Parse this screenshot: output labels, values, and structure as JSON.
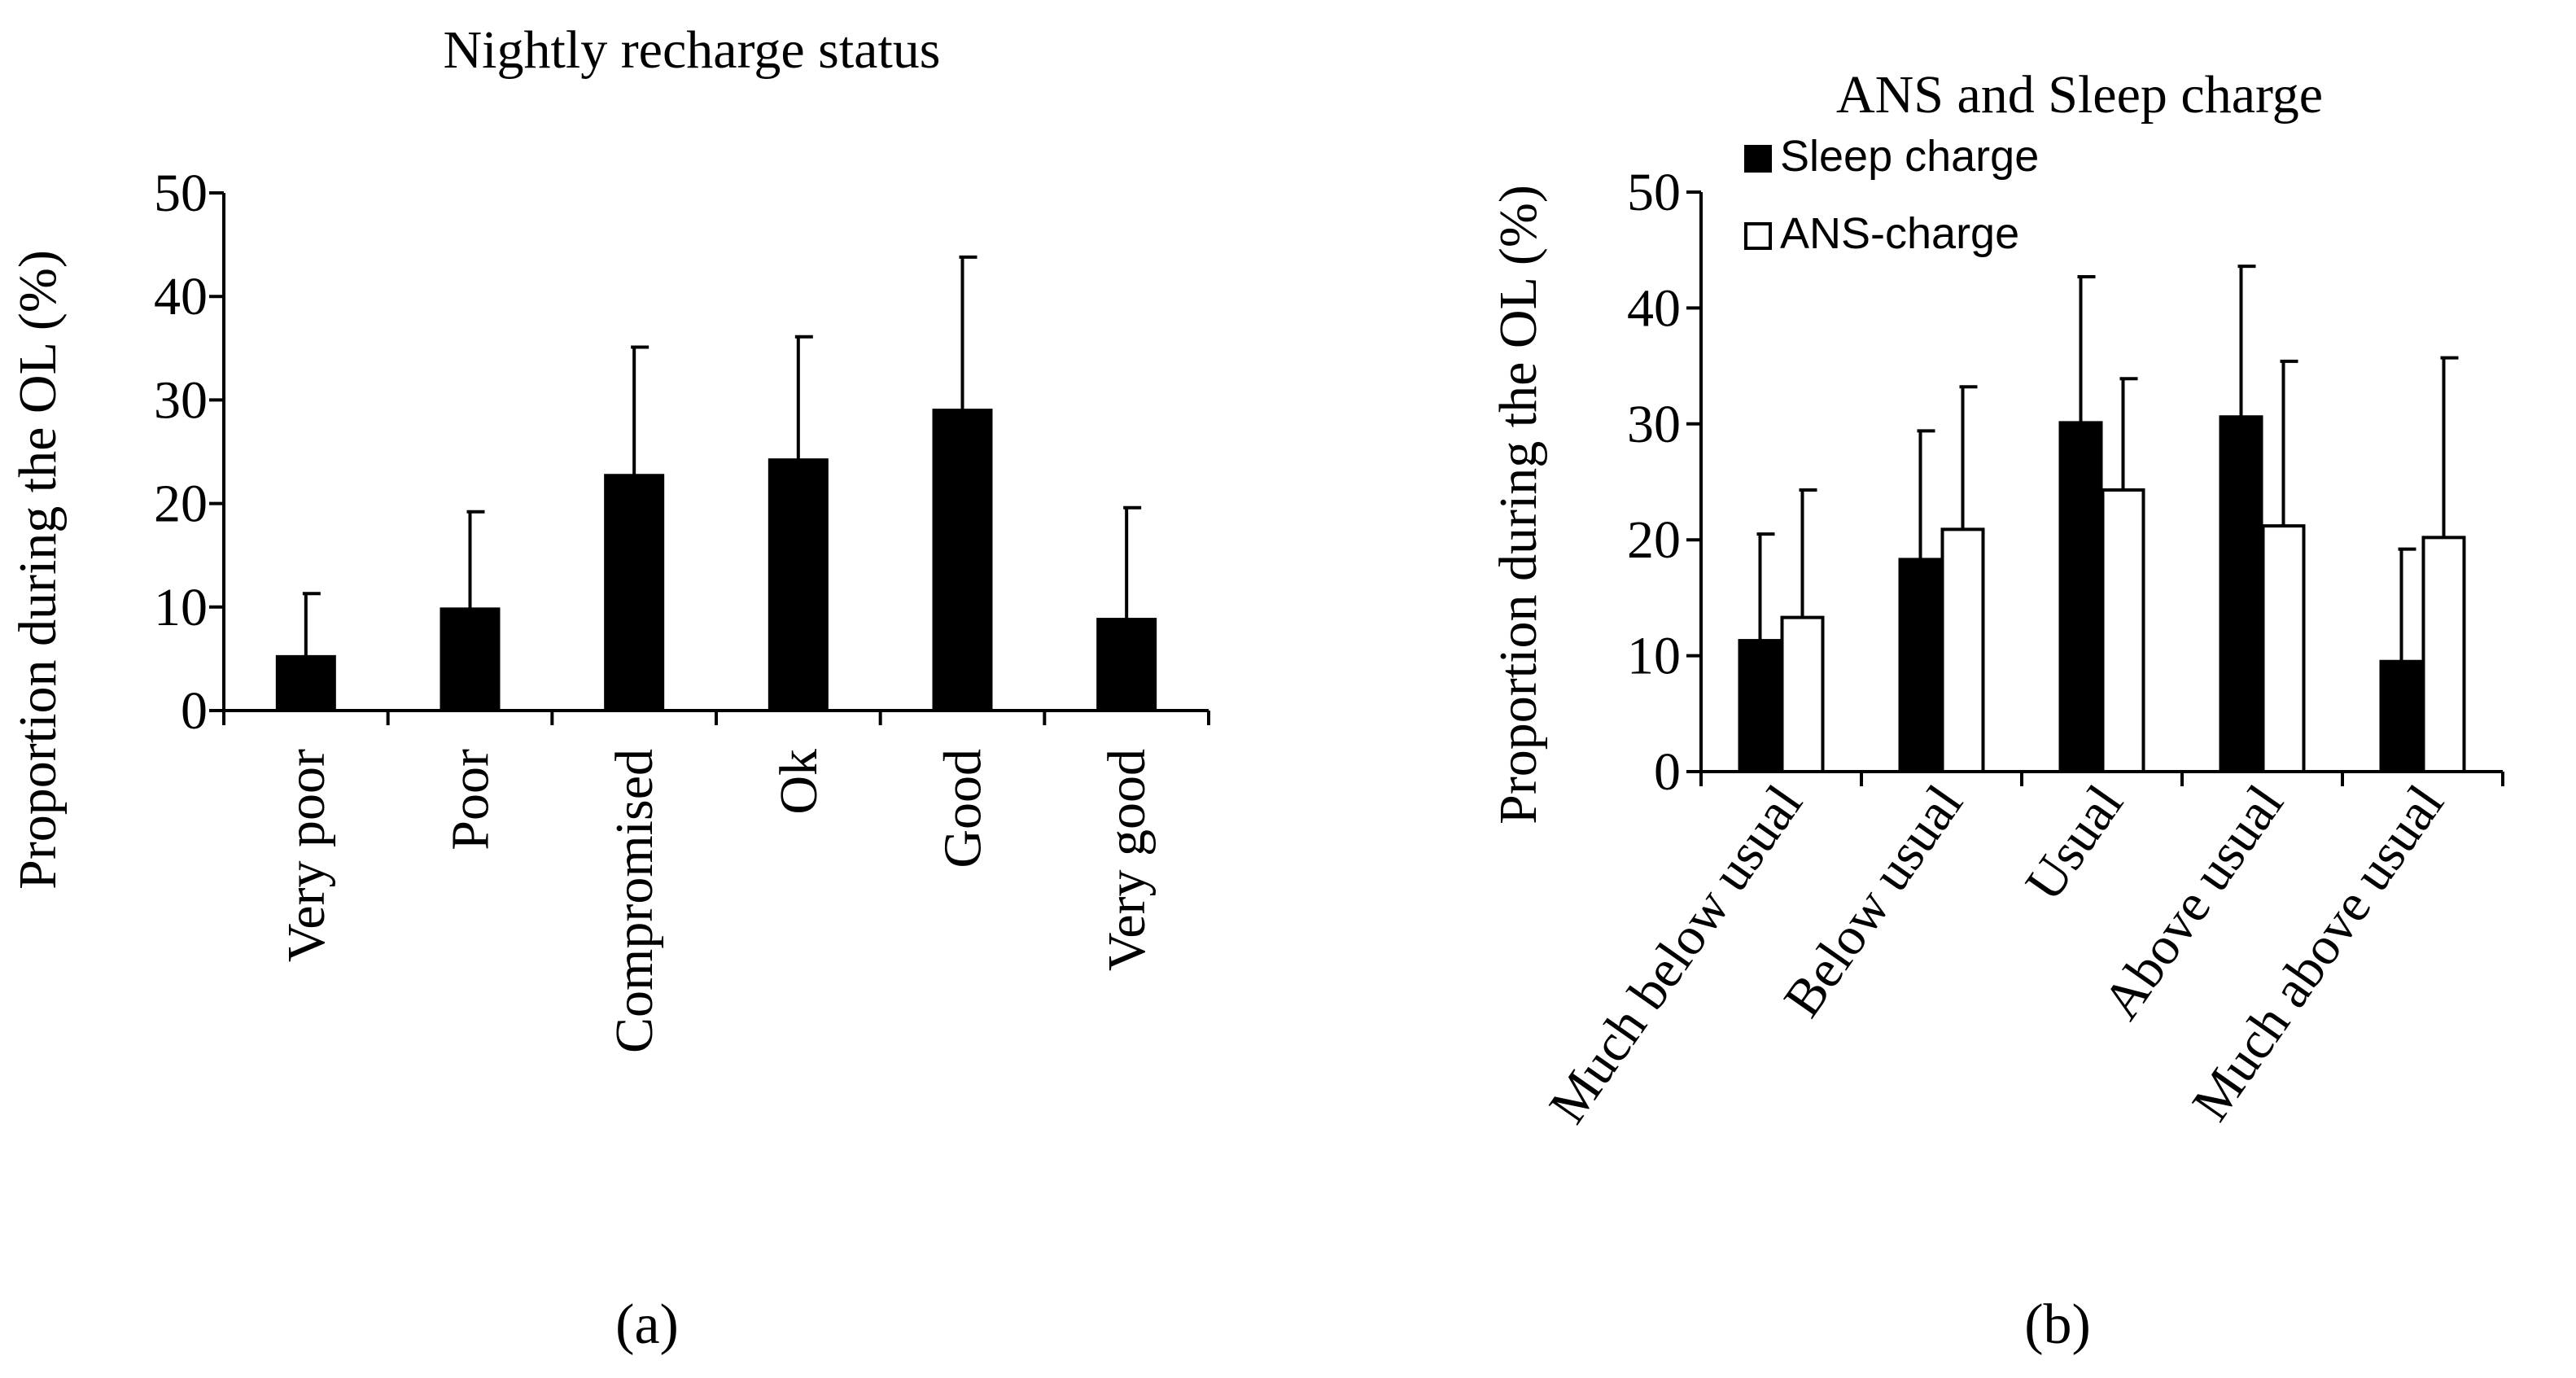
{
  "chart_data": [
    {
      "type": "bar",
      "title": "Nightly recharge status",
      "xlabel": "",
      "ylabel": "Proportion during the OL (%)",
      "ylim": [
        0,
        50
      ],
      "yticks": [
        0,
        10,
        20,
        30,
        40,
        50
      ],
      "grid": false,
      "error_bars": true,
      "categories": [
        "Very poor",
        "Poor",
        "Compromised",
        "Ok",
        "Good",
        "Very good"
      ],
      "series": [
        {
          "name": "Nightly recharge",
          "color": "#000000",
          "values": [
            5.2,
            9.8,
            22.7,
            24.2,
            29.0,
            8.8
          ],
          "errors": [
            6.1,
            9.4,
            12.4,
            11.9,
            14.8,
            10.8
          ]
        }
      ],
      "panel_label": "a"
    },
    {
      "type": "bar",
      "title": "ANS and Sleep charge",
      "xlabel": "",
      "ylabel": "Proportion during the OL (%)",
      "ylim": [
        0,
        50
      ],
      "yticks": [
        0,
        10,
        20,
        30,
        40,
        50
      ],
      "grid": false,
      "error_bars": true,
      "legend_position": "top-left",
      "categories": [
        "Much below usual",
        "Below usual",
        "Usual",
        "Above usual",
        "Much above usual"
      ],
      "series": [
        {
          "name": "Sleep charge",
          "color": "#000000",
          "values": [
            11.3,
            18.3,
            30.1,
            30.6,
            9.5
          ],
          "errors": [
            9.2,
            11.1,
            12.6,
            13.0,
            9.7
          ]
        },
        {
          "name": "ANS-charge",
          "color": "#ffffff",
          "values": [
            13.3,
            20.9,
            24.3,
            21.2,
            20.2
          ],
          "errors": [
            11.0,
            12.3,
            9.6,
            14.2,
            15.5
          ]
        }
      ],
      "panel_label": "b"
    }
  ],
  "panel_labels": [
    "(a)",
    "(b)"
  ]
}
